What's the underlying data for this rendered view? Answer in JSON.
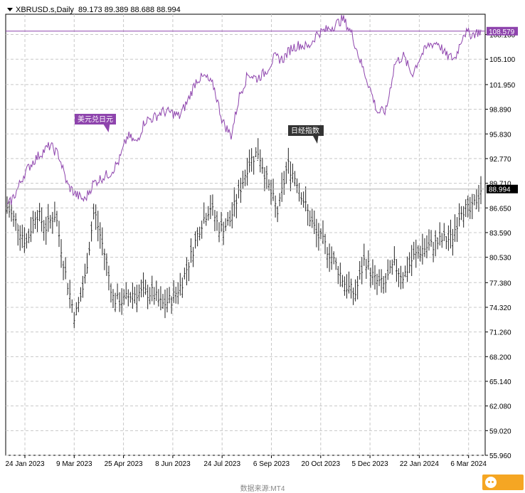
{
  "header": {
    "symbol": "XBRUSD.s,Daily",
    "ohlc": "89.173 89.389 88.688 88.994"
  },
  "footer": {
    "source": "数据来源:MT4"
  },
  "chart_data": {
    "type": "line",
    "title": "",
    "xlabel": "",
    "ylabel": "",
    "ylim": [
      55.96,
      110.68
    ],
    "y_ticks": [
      "55.960",
      "59.020",
      "62.080",
      "65.140",
      "68.200",
      "71.260",
      "74.320",
      "77.380",
      "80.530",
      "83.590",
      "86.650",
      "89.710",
      "92.770",
      "95.830",
      "98.890",
      "101.950",
      "105.100",
      "108.160"
    ],
    "x_tick_labels": [
      "24 Jan 2023",
      "9 Mar 2023",
      "25 Apr 2023",
      "8 Jun 2023",
      "24 Jul 2023",
      "6 Sep 2023",
      "20 Oct 2023",
      "5 Dec 2023",
      "22 Jan 2024",
      "6 Mar 2024"
    ],
    "grid": true,
    "series": [
      {
        "name": "美元兑日元",
        "kind": "line",
        "color": "#8e44ad",
        "last_label": "108.579",
        "values": [
          86.7,
          88.5,
          90.9,
          92.4,
          93.5,
          94.4,
          93.2,
          89.5,
          88.3,
          87.6,
          89.7,
          90.4,
          91.0,
          92.5,
          95.6,
          94.7,
          97.5,
          97.8,
          98.6,
          98.5,
          98.0,
          100.0,
          102.6,
          102.9,
          101.7,
          97.4,
          95.6,
          100.7,
          103.3,
          102.7,
          103.5,
          105.3,
          105.1,
          106.5,
          106.9,
          106.6,
          108.3,
          108.7,
          109.3,
          110.1,
          108.3,
          104.9,
          101.9,
          98.5,
          98.7,
          104.6,
          105.5,
          103.2,
          105.5,
          106.9,
          107.2,
          105.5,
          105.2,
          108.4,
          108.2,
          108.6
        ]
      },
      {
        "name": "日经指数",
        "kind": "ohlc",
        "color": "#222222",
        "last_label": "88.994",
        "values": [
          86.7,
          84.7,
          82.3,
          86.2,
          84.2,
          86.0,
          78.7,
          73.0,
          77.4,
          86.4,
          81.4,
          75.3,
          75.1,
          76.1,
          76.1,
          76.1,
          74.6,
          75.3,
          77.1,
          80.6,
          84.5,
          86.9,
          84.0,
          84.9,
          88.6,
          92.3,
          93.7,
          89.5,
          86.0,
          92.1,
          90.0,
          86.4,
          83.5,
          81.8,
          79.6,
          77.1,
          75.9,
          80.4,
          77.7,
          77.0,
          79.6,
          78.1,
          80.5,
          81.6,
          82.0,
          82.7,
          82.8,
          86.7,
          86.1,
          89.0
        ]
      }
    ]
  },
  "annotations": {
    "usdjpy": "美元兑日元",
    "nikkei": "日经指数"
  }
}
